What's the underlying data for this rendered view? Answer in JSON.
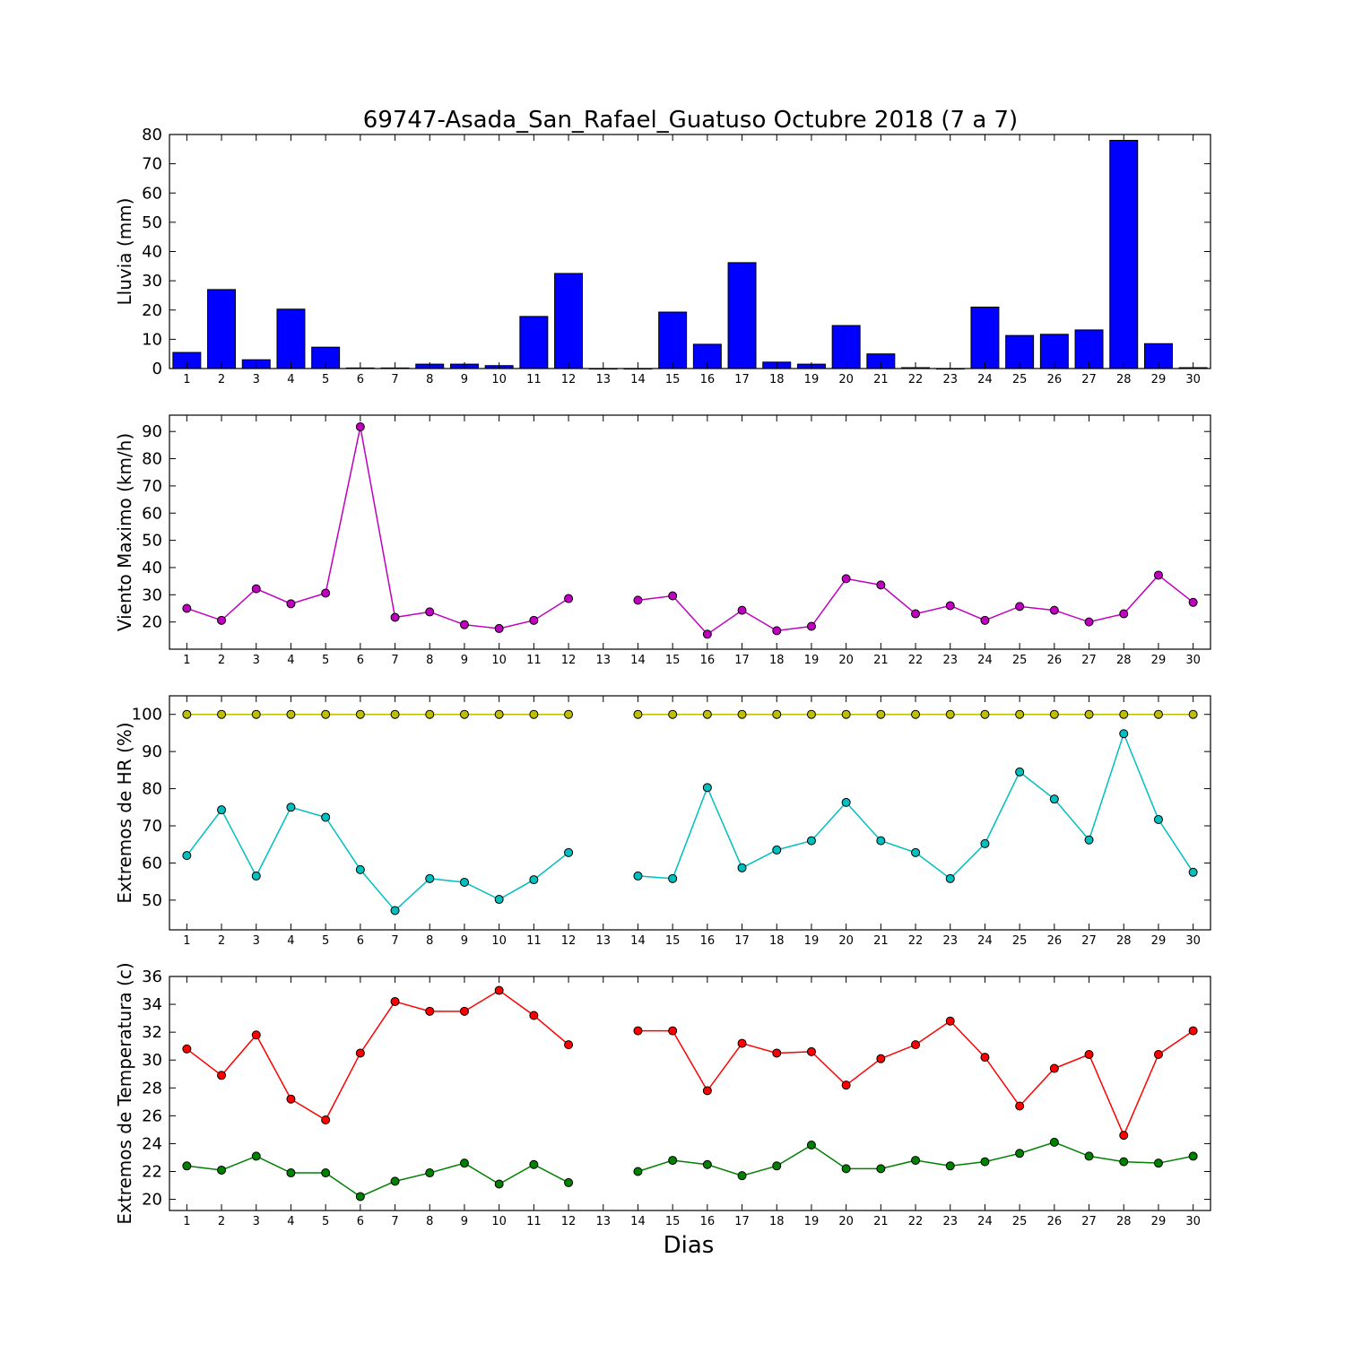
{
  "chart_data": {
    "title": "69747-Asada_San_Rafael_Guatuso Octubre 2018  (7 a 7)",
    "xlabel": "Dias",
    "days": [
      1,
      2,
      3,
      4,
      5,
      6,
      7,
      8,
      9,
      10,
      11,
      12,
      13,
      14,
      15,
      16,
      17,
      18,
      19,
      20,
      21,
      22,
      23,
      24,
      25,
      26,
      27,
      28,
      29,
      30
    ],
    "panels": [
      {
        "type": "bar",
        "ylabel": "Lluvia (mm)",
        "ylim": [
          0,
          80
        ],
        "yticks": [
          0,
          10,
          20,
          30,
          40,
          50,
          60,
          70,
          80
        ],
        "series": [
          {
            "color": "#0000ff",
            "values": [
              5.5,
              27,
              3,
              20.3,
              7.3,
              0.2,
              0.2,
              1.5,
              1.5,
              1,
              17.8,
              32.5,
              0,
              0,
              19.3,
              8.3,
              36.2,
              2.2,
              1.5,
              14.7,
              5,
              0.3,
              0,
              21,
              11.3,
              11.7,
              13.2,
              78,
              8.5,
              0.3
            ]
          }
        ]
      },
      {
        "type": "line",
        "ylabel": "Viento Maximo (km/h)",
        "ylim": [
          10,
          96
        ],
        "yticks": [
          20,
          30,
          40,
          50,
          60,
          70,
          80,
          90
        ],
        "series": [
          {
            "color": "#bf00bf",
            "values": [
              25,
              20.6,
              32.2,
              26.7,
              30.6,
              91.7,
              21.7,
              23.7,
              19,
              17.6,
              20.6,
              28.6,
              null,
              28,
              29.6,
              15.5,
              24.3,
              16.8,
              18.4,
              35.9,
              33.6,
              23,
              26,
              20.6,
              25.7,
              24.3,
              20,
              23,
              37.2,
              27.2
            ]
          }
        ]
      },
      {
        "type": "line",
        "ylabel": "Extremos de HR (%)",
        "ylim": [
          42,
          105
        ],
        "yticks": [
          50,
          60,
          70,
          80,
          90,
          100
        ],
        "series": [
          {
            "color": "#bfbf00",
            "values": [
              100,
              100,
              100,
              100,
              100,
              100,
              100,
              100,
              100,
              100,
              100,
              100,
              null,
              100,
              100,
              100,
              100,
              100,
              100,
              100,
              100,
              100,
              100,
              100,
              100,
              100,
              100,
              100,
              100,
              100
            ]
          },
          {
            "color": "#00bfbf",
            "values": [
              62,
              74.3,
              56.5,
              75,
              72.3,
              58.2,
              47.2,
              55.8,
              54.8,
              50.2,
              55.5,
              62.8,
              null,
              56.5,
              55.8,
              80.3,
              58.7,
              63.5,
              66,
              76.3,
              66,
              62.8,
              55.8,
              65.2,
              84.5,
              77.2,
              66.2,
              94.8,
              71.7,
              57.5
            ]
          }
        ]
      },
      {
        "type": "line",
        "ylabel": "Extremos de Temperatura (c)",
        "ylim": [
          19.2,
          36
        ],
        "yticks": [
          20,
          22,
          24,
          26,
          28,
          30,
          32,
          34,
          36
        ],
        "series": [
          {
            "color": "#ff0000",
            "values": [
              30.8,
              28.9,
              31.8,
              27.2,
              25.7,
              30.5,
              34.2,
              33.5,
              33.5,
              35,
              33.2,
              31.1,
              null,
              32.1,
              32.1,
              27.8,
              31.2,
              30.5,
              30.6,
              28.2,
              30.1,
              31.1,
              32.8,
              30.2,
              26.7,
              29.4,
              30.4,
              24.6,
              30.4,
              32.1
            ]
          },
          {
            "color": "#008000",
            "values": [
              22.4,
              22.1,
              23.1,
              21.9,
              21.9,
              20.2,
              21.3,
              21.9,
              22.6,
              21.1,
              22.5,
              21.2,
              null,
              22,
              22.8,
              22.5,
              21.7,
              22.4,
              23.9,
              22.2,
              22.2,
              22.8,
              22.4,
              22.7,
              23.3,
              24.1,
              23.1,
              22.7,
              22.6,
              23.1
            ]
          }
        ]
      }
    ]
  }
}
